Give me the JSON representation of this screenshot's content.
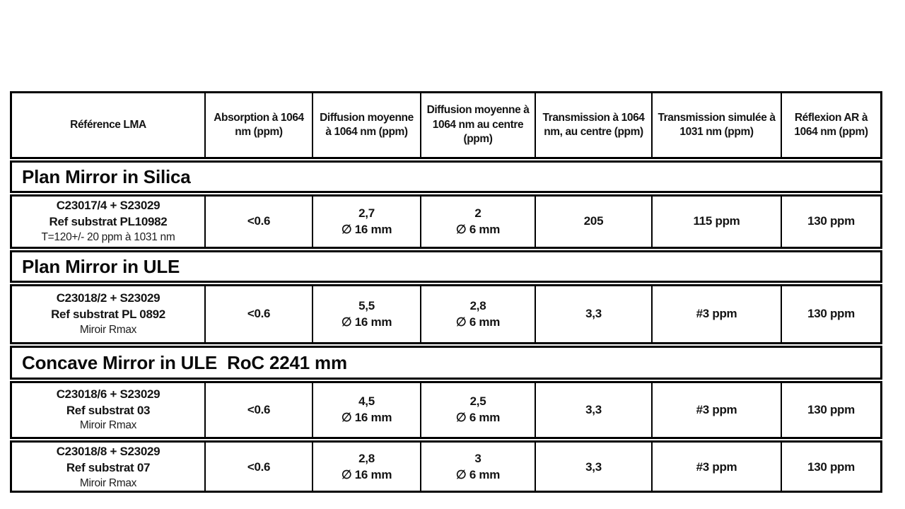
{
  "table": {
    "border_color": "#000000",
    "text_color": "#141414",
    "header": {
      "columns": [
        "Référence LMA",
        "Absorption à 1064 nm (ppm)",
        "Diffusion moyenne à 1064 nm (ppm)",
        "Diffusion moyenne à 1064 nm au centre (ppm)",
        "Transmission à 1064 nm, au centre (ppm)",
        "Transmission simulée à 1031 nm (ppm)",
        "Réflexion AR à 1064 nm (ppm)"
      ]
    },
    "sections": [
      {
        "title": "Plan Mirror in Silica",
        "rows": [
          {
            "reference": {
              "line1": "C23017/4 + S23029",
              "line2": "Ref substrat PL10982",
              "line3": "T=120+/- 20 ppm à 1031 nm"
            },
            "absorption": "<0.6",
            "diffusion_mean": {
              "value": "2,7",
              "diameter": "∅ 16 mm"
            },
            "diffusion_center": {
              "value": "2",
              "diameter": "∅ 6 mm"
            },
            "transmission": "205",
            "transmission_simulated": "115 ppm",
            "reflexion": "130 ppm"
          }
        ]
      },
      {
        "title": "Plan Mirror in ULE",
        "rows": [
          {
            "reference": {
              "line1": "C23018/2 + S23029",
              "line2": "Ref substrat PL 0892",
              "line3": "Miroir Rmax"
            },
            "absorption": "<0.6",
            "diffusion_mean": {
              "value": "5,5",
              "diameter": "∅ 16 mm"
            },
            "diffusion_center": {
              "value": "2,8",
              "diameter": "∅ 6 mm"
            },
            "transmission": "3,3",
            "transmission_simulated": "#3 ppm",
            "reflexion": "130 ppm"
          }
        ]
      },
      {
        "title": "Concave Mirror in ULE  RoC 2241 mm",
        "rows": [
          {
            "reference": {
              "line1": "C23018/6 + S23029",
              "line2": "Ref substrat 03",
              "line3": "Miroir Rmax"
            },
            "absorption": "<0.6",
            "diffusion_mean": {
              "value": "4,5",
              "diameter": "∅ 16 mm"
            },
            "diffusion_center": {
              "value": "2,5",
              "diameter": "∅ 6 mm"
            },
            "transmission": "3,3",
            "transmission_simulated": "#3 ppm",
            "reflexion": "130 ppm"
          },
          {
            "reference": {
              "line1": "C23018/8 + S23029",
              "line2": "Ref substrat 07",
              "line3": "Miroir Rmax"
            },
            "absorption": "<0.6",
            "diffusion_mean": {
              "value": "2,8",
              "diameter": "∅ 16 mm"
            },
            "diffusion_center": {
              "value": "3",
              "diameter": "∅ 6 mm"
            },
            "transmission": "3,3",
            "transmission_simulated": "#3 ppm",
            "reflexion": "130 ppm"
          }
        ]
      }
    ]
  }
}
